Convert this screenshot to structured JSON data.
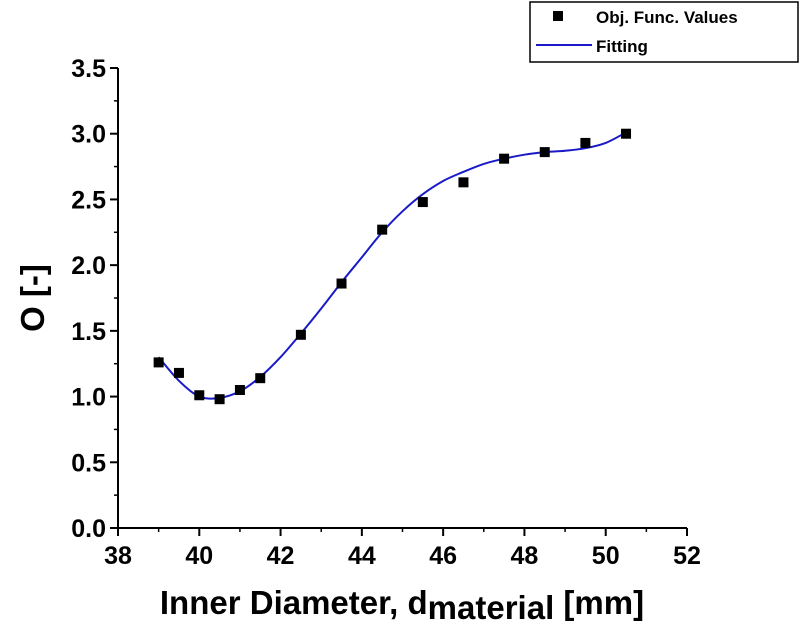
{
  "chart_data": {
    "type": "scatter",
    "title": "",
    "xlabel": "Inner Diameter, ",
    "xlabel_sub": "material",
    "xlabel_main_letter": "d",
    "xlabel_unit": " [mm]",
    "ylabel": "O [-]",
    "xlim": [
      38,
      52
    ],
    "ylim": [
      0,
      3.5
    ],
    "xticks": [
      "38",
      "40",
      "42",
      "44",
      "46",
      "48",
      "50",
      "52"
    ],
    "yticks": [
      "0.0",
      "0.5",
      "1.0",
      "1.5",
      "2.0",
      "2.5",
      "3.0",
      "3.5"
    ],
    "grid": false,
    "legend_position": "top-right",
    "series": [
      {
        "name": "Obj. Func. Values",
        "kind": "scatter",
        "color": "#000000",
        "marker": "square",
        "x": [
          39,
          39.5,
          40,
          40.5,
          41,
          41.5,
          42.5,
          43.5,
          44.5,
          45.5,
          46.5,
          47.5,
          48.5,
          49.5,
          50.5
        ],
        "y": [
          1.26,
          1.18,
          1.01,
          0.98,
          1.05,
          1.14,
          1.47,
          1.86,
          2.27,
          2.48,
          2.63,
          2.81,
          2.86,
          2.93,
          3.0
        ]
      },
      {
        "name": "Fitting",
        "kind": "line",
        "color": "#1a1ac8",
        "x": [
          39,
          39.5,
          40,
          40.5,
          41,
          41.5,
          42,
          42.5,
          43,
          43.5,
          44,
          44.5,
          45,
          45.5,
          46,
          46.5,
          47,
          47.5,
          48,
          48.5,
          49,
          49.5,
          50,
          50.5
        ],
        "y": [
          1.3,
          1.12,
          1.0,
          0.99,
          1.04,
          1.15,
          1.3,
          1.48,
          1.67,
          1.87,
          2.06,
          2.25,
          2.41,
          2.54,
          2.64,
          2.71,
          2.77,
          2.81,
          2.84,
          2.86,
          2.87,
          2.89,
          2.93,
          3.01
        ]
      }
    ]
  }
}
